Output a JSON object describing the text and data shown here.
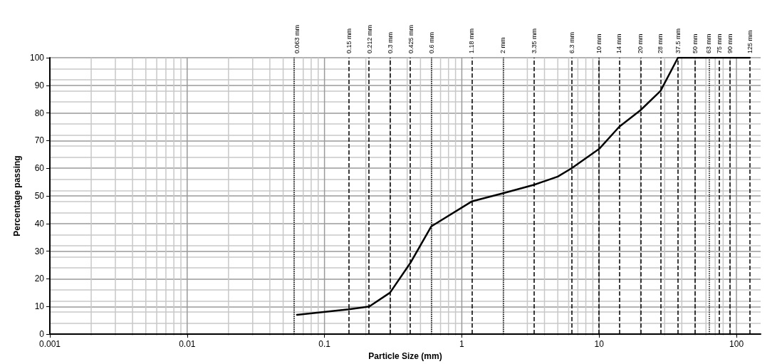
{
  "chart_data": {
    "type": "line",
    "xlabel": "Particle Size (mm)",
    "ylabel": "Percentage passing",
    "log": "x",
    "grid": true,
    "marker": "none",
    "line_style": "solid",
    "xlim": [
      0.001,
      150
    ],
    "xticks": [
      0.001,
      0.01,
      0.1,
      1,
      10,
      100
    ],
    "ylim": [
      0,
      100
    ],
    "yticks": [
      0,
      10,
      20,
      30,
      40,
      50,
      60,
      70,
      80,
      90,
      100
    ],
    "x": [
      0.063,
      0.15,
      0.212,
      0.3,
      0.425,
      0.6,
      1.18,
      2,
      3.35,
      5,
      6.3,
      10,
      14,
      20,
      28,
      37.5,
      50,
      63,
      75,
      90,
      125
    ],
    "series": [
      {
        "color": "#000000",
        "values": [
          7,
          9,
          10,
          15,
          26,
          39,
          48,
          51,
          54,
          57,
          60,
          67,
          75,
          81,
          88,
          100,
          100,
          100,
          100,
          100,
          100
        ]
      }
    ],
    "ref_lines": [
      {
        "axis": "x",
        "value": 0.063,
        "label": "0.063 mm",
        "line_style": "dotted",
        "color": "#000000"
      },
      {
        "axis": "x",
        "value": 0.15,
        "label": "0.15 mm",
        "line_style": "dashed",
        "color": "#000000"
      },
      {
        "axis": "x",
        "value": 0.212,
        "label": "0.212 mm",
        "line_style": "dashed",
        "color": "#000000"
      },
      {
        "axis": "x",
        "value": 0.3,
        "label": "0.3 mm",
        "line_style": "dashed",
        "color": "#000000"
      },
      {
        "axis": "x",
        "value": 0.425,
        "label": "0.425 mm",
        "line_style": "dashed",
        "color": "#000000"
      },
      {
        "axis": "x",
        "value": 0.6,
        "label": "0.6 mm",
        "line_style": "dotted",
        "color": "#000000"
      },
      {
        "axis": "x",
        "value": 1.18,
        "label": "1.18 mm",
        "line_style": "dashed",
        "color": "#000000"
      },
      {
        "axis": "x",
        "value": 2,
        "label": "2 mm",
        "line_style": "dotted",
        "color": "#000000"
      },
      {
        "axis": "x",
        "value": 3.35,
        "label": "3.35 mm",
        "line_style": "dashed",
        "color": "#000000"
      },
      {
        "axis": "x",
        "value": 6.3,
        "label": "6.3 mm",
        "line_style": "dashed",
        "color": "#000000"
      },
      {
        "axis": "x",
        "value": 10,
        "label": "10 mm",
        "line_style": "dashed",
        "color": "#000000"
      },
      {
        "axis": "x",
        "value": 14,
        "label": "14 mm",
        "line_style": "dashed",
        "color": "#000000"
      },
      {
        "axis": "x",
        "value": 20,
        "label": "20 mm",
        "line_style": "dashed",
        "color": "#000000"
      },
      {
        "axis": "x",
        "value": 28,
        "label": "28 mm",
        "line_style": "dashed",
        "color": "#000000"
      },
      {
        "axis": "x",
        "value": 37.5,
        "label": "37.5 mm",
        "line_style": "dashed",
        "color": "#000000"
      },
      {
        "axis": "x",
        "value": 50,
        "label": "50 mm",
        "line_style": "dashed",
        "color": "#000000"
      },
      {
        "axis": "x",
        "value": 63,
        "label": "63 mm",
        "line_style": "dotted",
        "color": "#000000"
      },
      {
        "axis": "x",
        "value": 75,
        "label": "75 mm",
        "line_style": "dashed",
        "color": "#000000"
      },
      {
        "axis": "x",
        "value": 90,
        "label": "90 mm",
        "line_style": "dashed",
        "color": "#000000"
      },
      {
        "axis": "x",
        "value": 125,
        "label": "125 mm",
        "line_style": "dashed",
        "color": "#000000"
      }
    ]
  }
}
